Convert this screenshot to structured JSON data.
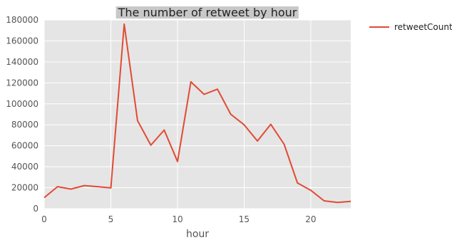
{
  "chart_data": {
    "type": "line",
    "title": "The number of retweet by hour",
    "xlabel": "hour",
    "ylabel": "",
    "xlim": [
      0,
      23
    ],
    "ylim": [
      0,
      180000
    ],
    "x_ticks": [
      0,
      5,
      10,
      15,
      20
    ],
    "y_ticks": [
      0,
      20000,
      40000,
      60000,
      80000,
      100000,
      120000,
      140000,
      160000,
      180000
    ],
    "grid": true,
    "legend_placement": "outside-top-right",
    "background_color": "#e5e5e5",
    "grid_color": "#ffffff",
    "series": [
      {
        "name": "retweetCount",
        "color": "#e24a33",
        "x": [
          0,
          1,
          2,
          3,
          4,
          5,
          6,
          7,
          8,
          9,
          10,
          11,
          12,
          13,
          14,
          15,
          16,
          17,
          18,
          19,
          20,
          21,
          22,
          23
        ],
        "values": [
          10500,
          21000,
          18700,
          22000,
          21000,
          19800,
          176000,
          84000,
          60500,
          75000,
          45000,
          121000,
          109000,
          114000,
          90000,
          80000,
          64500,
          80500,
          61500,
          24500,
          17500,
          7500,
          6000,
          7000
        ]
      }
    ]
  }
}
